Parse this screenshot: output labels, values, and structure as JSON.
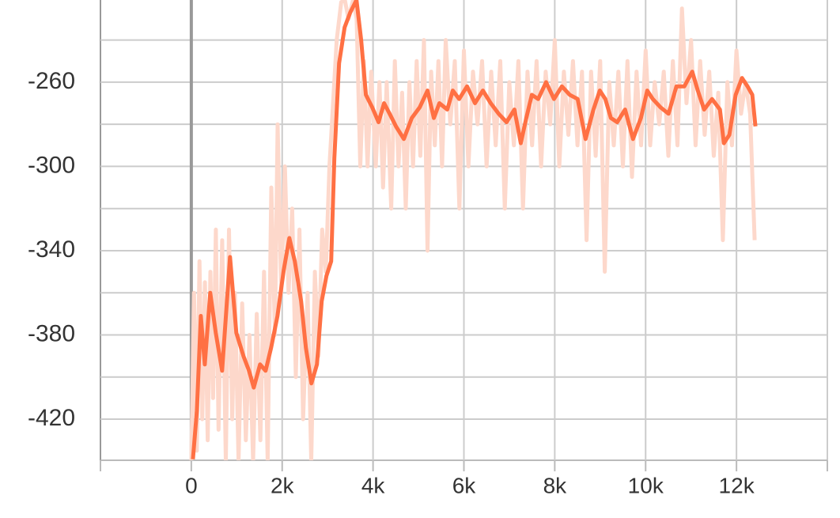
{
  "chart_data": {
    "type": "line",
    "xlim": [
      -2000,
      14000
    ],
    "ylim": [
      -439.5,
      -221
    ],
    "xticks": [
      {
        "value": 0,
        "label": "0"
      },
      {
        "value": 2000,
        "label": "2k"
      },
      {
        "value": 4000,
        "label": "4k"
      },
      {
        "value": 6000,
        "label": "6k"
      },
      {
        "value": 8000,
        "label": "8k"
      },
      {
        "value": 10000,
        "label": "10k"
      },
      {
        "value": 12000,
        "label": "12k"
      }
    ],
    "yticks": [
      -420,
      -380,
      -340,
      -300,
      -260
    ],
    "y_minor_ticks": [
      -400,
      -360,
      -320,
      -280,
      -240
    ],
    "grid": true,
    "series": [
      {
        "color": "#fdd8cb",
        "x": [
          0,
          60,
          120,
          180,
          240,
          300,
          360,
          420,
          480,
          540,
          600,
          680,
          760,
          830,
          900,
          960,
          1040,
          1120,
          1200,
          1280,
          1360,
          1440,
          1520,
          1600,
          1680,
          1760,
          1840,
          1900,
          1980,
          2060,
          2140,
          2220,
          2300,
          2380,
          2460,
          2560,
          2640,
          2720,
          2800,
          2880,
          2960,
          3040,
          3120,
          3200,
          3300,
          3380,
          3460,
          3560,
          3640,
          3720,
          3800,
          3880,
          3960,
          4060,
          4140,
          4220,
          4300,
          4400,
          4480,
          4560,
          4640,
          4720,
          4800,
          4880,
          4960,
          5040,
          5120,
          5200,
          5280,
          5360,
          5440,
          5520,
          5600,
          5700,
          5800,
          5900,
          6000,
          6100,
          6200,
          6300,
          6400,
          6500,
          6600,
          6700,
          6800,
          6900,
          7000,
          7100,
          7200,
          7300,
          7400,
          7500,
          7600,
          7700,
          7800,
          7900,
          8000,
          8100,
          8200,
          8300,
          8400,
          8500,
          8600,
          8700,
          8800,
          8900,
          9000,
          9100,
          9200,
          9300,
          9400,
          9500,
          9600,
          9700,
          9800,
          9900,
          10000,
          10100,
          10200,
          10300,
          10400,
          10500,
          10600,
          10700,
          10800,
          10900,
          11000,
          11100,
          11200,
          11300,
          11400,
          11500,
          11600,
          11700,
          11800,
          11900,
          12000,
          12100,
          12200,
          12300,
          12400
        ],
        "values": [
          -440,
          -360,
          -435,
          -345,
          -420,
          -355,
          -430,
          -350,
          -410,
          -330,
          -425,
          -335,
          -440,
          -330,
          -420,
          -360,
          -440,
          -365,
          -430,
          -380,
          -440,
          -370,
          -430,
          -350,
          -440,
          -310,
          -380,
          -280,
          -360,
          -300,
          -360,
          -320,
          -400,
          -330,
          -420,
          -360,
          -440,
          -350,
          -390,
          -330,
          -350,
          -300,
          -270,
          -240,
          -222,
          -221,
          -230,
          -221,
          -230,
          -300,
          -250,
          -300,
          -255,
          -300,
          -260,
          -310,
          -260,
          -320,
          -250,
          -300,
          -265,
          -320,
          -260,
          -300,
          -250,
          -295,
          -240,
          -340,
          -255,
          -290,
          -250,
          -300,
          -240,
          -280,
          -250,
          -320,
          -245,
          -300,
          -255,
          -280,
          -250,
          -300,
          -255,
          -290,
          -250,
          -320,
          -260,
          -290,
          -250,
          -320,
          -255,
          -290,
          -250,
          -300,
          -255,
          -280,
          -240,
          -300,
          -255,
          -285,
          -250,
          -290,
          -255,
          -335,
          -255,
          -295,
          -250,
          -350,
          -260,
          -290,
          -255,
          -300,
          -250,
          -305,
          -255,
          -290,
          -245,
          -290,
          -260,
          -280,
          -255,
          -295,
          -250,
          -290,
          -225,
          -270,
          -240,
          -290,
          -250,
          -285,
          -255,
          -295,
          -265,
          -335,
          -260,
          -290,
          -245,
          -275,
          -260,
          -275,
          -335
        ]
      },
      {
        "color": "#ff7043",
        "x": [
          35,
          122,
          209,
          296,
          417,
          539,
          678,
          852,
          991,
          1148,
          1270,
          1374,
          1513,
          1635,
          1757,
          1896,
          2035,
          2157,
          2278,
          2417,
          2522,
          2643,
          2765,
          2870,
          2974,
          3078,
          3148,
          3252,
          3374,
          3496,
          3635,
          3739,
          3843,
          3983,
          4122,
          4243,
          4365,
          4504,
          4678,
          4852,
          5026,
          5200,
          5339,
          5461,
          5635,
          5757,
          5896,
          6070,
          6243,
          6417,
          6591,
          6765,
          6939,
          7113,
          7252,
          7374,
          7496,
          7635,
          7809,
          7983,
          8157,
          8330,
          8504,
          8678,
          8852,
          8991,
          9113,
          9235,
          9374,
          9548,
          9722,
          9896,
          10035,
          10157,
          10330,
          10504,
          10678,
          10852,
          11026,
          11148,
          11287,
          11461,
          11635,
          11722,
          11843,
          11983,
          12122,
          12243,
          12348,
          12417
        ],
        "values": [
          -439,
          -416,
          -371,
          -394,
          -360,
          -379,
          -397,
          -343,
          -379,
          -390,
          -397,
          -405,
          -394,
          -397,
          -386,
          -371,
          -349,
          -334,
          -345,
          -364,
          -386,
          -403,
          -394,
          -364,
          -352,
          -345,
          -296,
          -251,
          -234,
          -227,
          -221,
          -240,
          -266,
          -272,
          -279,
          -270,
          -275,
          -281,
          -287,
          -277,
          -272,
          -264,
          -277,
          -270,
          -273,
          -264,
          -268,
          -262,
          -270,
          -264,
          -270,
          -275,
          -279,
          -273,
          -289,
          -277,
          -266,
          -268,
          -260,
          -268,
          -262,
          -266,
          -268,
          -287,
          -273,
          -264,
          -268,
          -277,
          -279,
          -273,
          -287,
          -277,
          -264,
          -268,
          -272,
          -275,
          -262,
          -262,
          -255,
          -264,
          -273,
          -268,
          -273,
          -289,
          -285,
          -266,
          -258,
          -262,
          -266,
          -281
        ]
      }
    ]
  }
}
